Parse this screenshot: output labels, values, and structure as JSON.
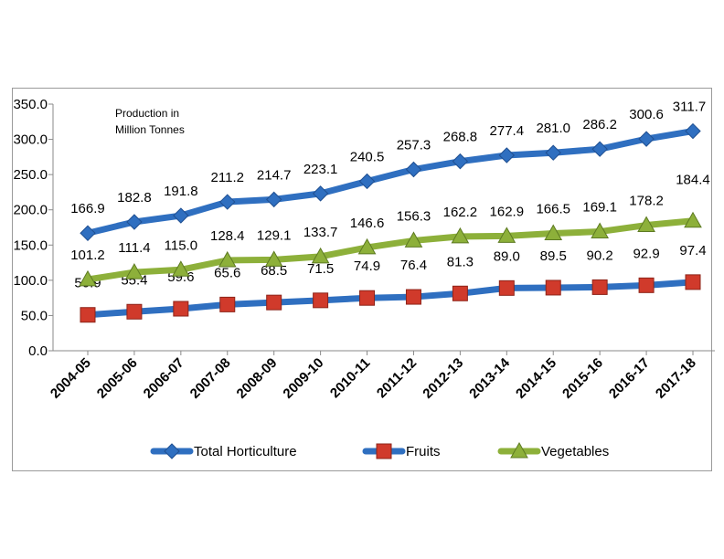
{
  "chart_data": {
    "type": "line",
    "categories": [
      "2004-05",
      "2005-06",
      "2006-07",
      "2007-08",
      "2008-09",
      "2009-10",
      "2010-11",
      "2011-12",
      "2012-13",
      "2013-14",
      "2014-15",
      "2015-16",
      "2016-17",
      "2017-18"
    ],
    "series": [
      {
        "name": "Total Horticulture",
        "color": "#2f6fc0",
        "marker": "diamond",
        "values": [
          166.9,
          182.8,
          191.8,
          211.2,
          214.7,
          223.1,
          240.5,
          257.3,
          268.8,
          277.4,
          281.0,
          286.2,
          300.6,
          311.7
        ],
        "labels": [
          "166.9",
          "182.8",
          "191.8",
          "211.2",
          "214.7",
          "223.1",
          "240.5",
          "257.3",
          "268.8",
          "277.4",
          "281.0",
          "286.2",
          "300.6",
          "311.7"
        ]
      },
      {
        "name": "Fruits",
        "color": "#2f6fc0",
        "marker_color": "#d03a2b",
        "marker": "square",
        "values": [
          50.9,
          55.4,
          59.6,
          65.6,
          68.5,
          71.5,
          74.9,
          76.4,
          81.3,
          89.0,
          89.5,
          90.2,
          92.9,
          97.4
        ],
        "labels": [
          "50.9",
          "55.4",
          "59.6",
          "65.6",
          "68.5",
          "71.5",
          "74.9",
          "76.4",
          "81.3",
          "89.0",
          "89.5",
          "90.2",
          "92.9",
          "97.4"
        ]
      },
      {
        "name": "Vegetables",
        "color": "#8db03a",
        "marker": "triangle",
        "values": [
          101.2,
          111.4,
          115.0,
          128.4,
          129.1,
          133.7,
          146.6,
          156.3,
          162.2,
          162.9,
          166.5,
          169.1,
          178.2,
          184.4
        ],
        "labels": [
          "101.2",
          "111.4",
          "115.0",
          "128.4",
          "129.1",
          "133.7",
          "146.6",
          "156.3",
          "162.2",
          "162.9",
          "166.5",
          "169.1",
          "178.2",
          "184.4"
        ]
      }
    ],
    "ylim": [
      0,
      350
    ],
    "yticks": [
      "0.0",
      "50.0",
      "100.0",
      "150.0",
      "200.0",
      "250.0",
      "300.0",
      "350.0"
    ],
    "annotation": [
      "Production in",
      "Million Tonnes"
    ],
    "legend_position": "bottom",
    "grid": false
  }
}
